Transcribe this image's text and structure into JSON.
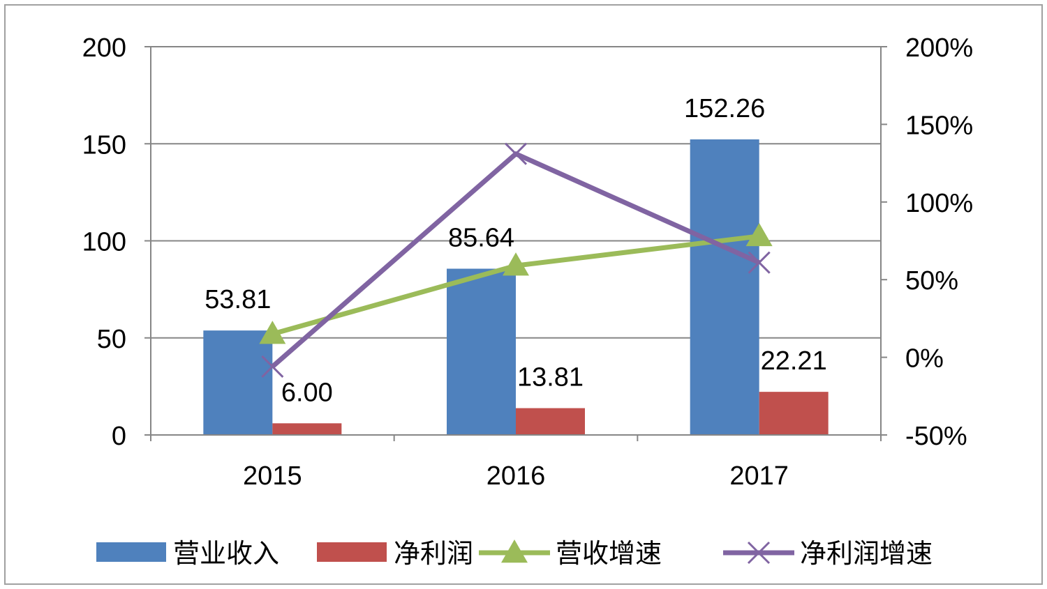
{
  "chart_data": {
    "type": "bar",
    "categories": [
      "2015",
      "2016",
      "2017"
    ],
    "series": [
      {
        "name": "营业收入",
        "kind": "bar",
        "axis": "left",
        "color": "#4f81bd",
        "values": [
          53.81,
          85.64,
          152.26
        ],
        "labels": [
          "53.81",
          "85.64",
          "152.26"
        ]
      },
      {
        "name": "净利润",
        "kind": "bar",
        "axis": "left",
        "color": "#c0504d",
        "values": [
          6.0,
          13.81,
          22.21
        ],
        "labels": [
          "6.00",
          "13.81",
          "22.21"
        ]
      },
      {
        "name": "营收增速",
        "kind": "line",
        "marker": "triangle",
        "axis": "right",
        "color": "#9bbb59",
        "values": [
          0.15,
          0.59,
          0.78
        ]
      },
      {
        "name": "净利润增速",
        "kind": "line",
        "marker": "x",
        "axis": "right",
        "color": "#8064a2",
        "values": [
          -0.06,
          1.31,
          0.61
        ]
      }
    ],
    "left_axis": {
      "min": 0,
      "max": 200,
      "ticks": [
        0,
        50,
        100,
        150,
        200
      ],
      "tick_labels": [
        "0",
        "50",
        "100",
        "150",
        "200"
      ]
    },
    "right_axis": {
      "min": -0.5,
      "max": 2.0,
      "ticks": [
        -0.5,
        0,
        0.5,
        1.0,
        1.5,
        2.0
      ],
      "tick_labels": [
        "-50%",
        "0%",
        "50%",
        "100%",
        "150%",
        "200%"
      ]
    },
    "grid": true,
    "legend_position": "bottom",
    "border_color": "#a0a0a0"
  }
}
